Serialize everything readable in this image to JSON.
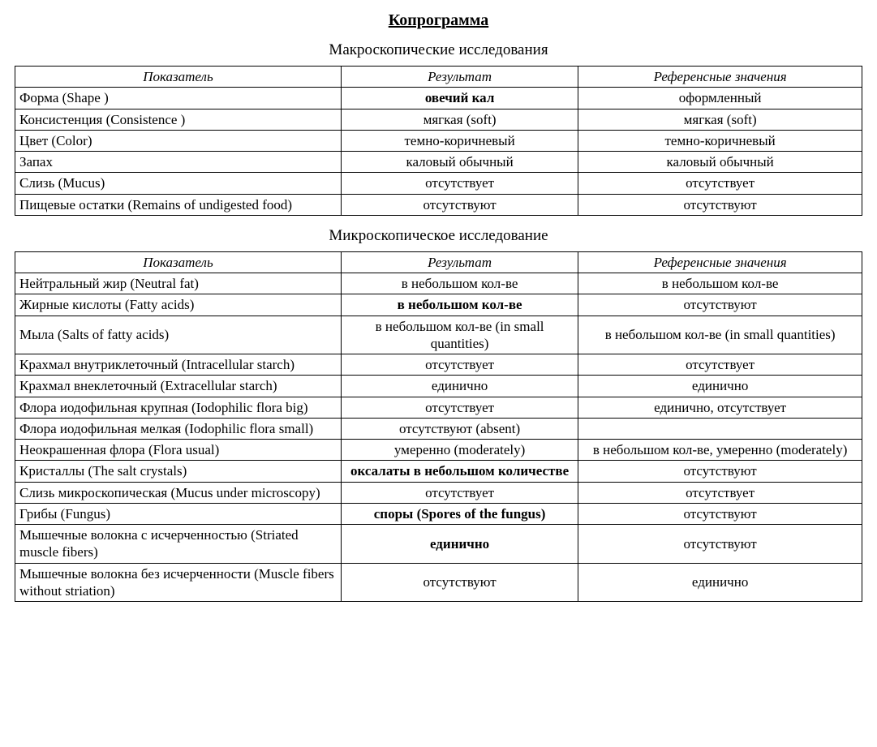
{
  "title": "Копрограмма",
  "sections": [
    {
      "heading": "Макроскопические исследования",
      "columns": [
        "Показатель",
        "Результат",
        "Референсные значения"
      ],
      "rows": [
        {
          "param": "Форма (Shape )",
          "result": "овечий кал",
          "result_bold": true,
          "ref": "оформленный"
        },
        {
          "param": "Консистенция (Consistence )",
          "result": "мягкая (soft)",
          "result_bold": false,
          "ref": "мягкая (soft)"
        },
        {
          "param": "Цвет (Color)",
          "result": "темно-коричневый",
          "result_bold": false,
          "ref": "темно-коричневый"
        },
        {
          "param": "Запах",
          "result": "каловый обычный",
          "result_bold": false,
          "ref": "каловый обычный"
        },
        {
          "param": "Слизь (Mucus)",
          "result": "отсутствует",
          "result_bold": false,
          "ref": "отсутствует"
        },
        {
          "param": "Пищевые остатки (Remains of undigested food)",
          "result": "отсутствуют",
          "result_bold": false,
          "ref": "отсутствуют"
        }
      ]
    },
    {
      "heading": "Микроскопическое исследование",
      "columns": [
        "Показатель",
        "Результат",
        "Референсные значения"
      ],
      "rows": [
        {
          "param": "Нейтральный жир (Neutral fat)",
          "result": "в небольшом кол-ве",
          "result_bold": false,
          "ref": "в небольшом кол-ве"
        },
        {
          "param": "Жирные кислоты (Fatty acids)",
          "result": "в небольшом кол-ве",
          "result_bold": true,
          "ref": "отсутствуют"
        },
        {
          "param": "Мыла (Salts of fatty acids)",
          "result": "в небольшом кол-ве (in small quantities)",
          "result_bold": false,
          "ref": "в небольшом кол-ве (in small quantities)"
        },
        {
          "param": "Крахмал внутриклеточный (Intracellular starch)",
          "result": "отсутствует",
          "result_bold": false,
          "ref": "отсутствует"
        },
        {
          "param": "Крахмал внеклеточный (Extracellular starch)",
          "result": "единично",
          "result_bold": false,
          "ref": "единично"
        },
        {
          "param": "Флора иодофильная крупная (Iodophilic flora big)",
          "result": "отсутствует",
          "result_bold": false,
          "ref": "единично, отсутствует"
        },
        {
          "param": "Флора иодофильная мелкая (Iodophilic flora small)",
          "result": "отсутствуют (absent)",
          "result_bold": false,
          "ref": ""
        },
        {
          "param": "Неокрашенная флора (Flora usual)",
          "result": "умеренно (moderately)",
          "result_bold": false,
          "ref": "в небольшом кол-ве, умеренно (moderately)"
        },
        {
          "param": "Кристаллы (The salt crystals)",
          "result": "оксалаты в небольшом количестве",
          "result_bold": true,
          "ref": "отсутствуют"
        },
        {
          "param": "Слизь микроскопическая (Mucus under microscopy)",
          "result": "отсутствует",
          "result_bold": false,
          "ref": "отсутствует"
        },
        {
          "param": "Грибы (Fungus)",
          "result": "споры (Spores of the fungus)",
          "result_bold": true,
          "ref": "отсутствуют"
        },
        {
          "param": "Мышечные волокна с исчерченностью (Striated muscle fibers)",
          "result": "единично",
          "result_bold": true,
          "ref": "отсутствуют"
        },
        {
          "param": "Мышечные волокна без исчерченности (Muscle fibers without striation)",
          "result": "отсутствуют",
          "result_bold": false,
          "ref": "единично"
        }
      ]
    }
  ]
}
